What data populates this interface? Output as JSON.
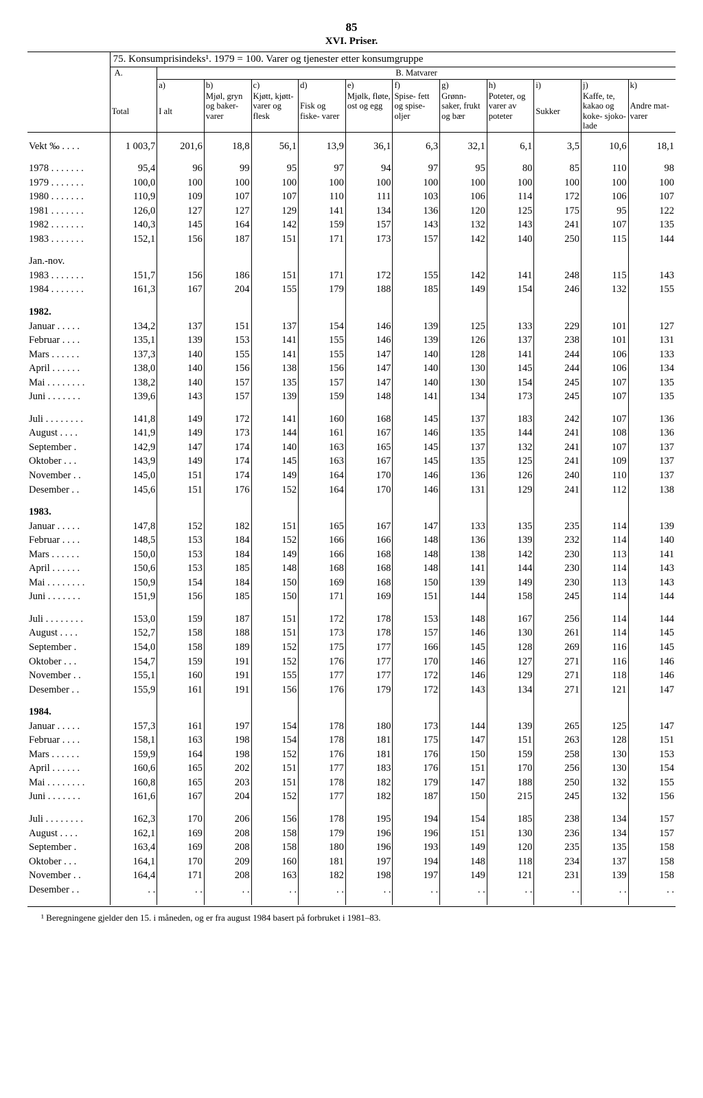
{
  "page_number": "85",
  "section_title": "XVI. Priser.",
  "table_title": "75. Konsumprisindeks¹. 1979 = 100. Varer og tjenester etter konsumgruppe",
  "col_group_A": "A.",
  "col_group_B": "B. Matvarer",
  "col_A_sub": "Total",
  "col_a_letter": "a)",
  "col_a_text": "I alt",
  "col_b_letter": "b)",
  "col_b_text": "Mjøl, gryn og baker- varer",
  "col_c_letter": "c)",
  "col_c_text": "Kjøtt, kjøtt- varer og flesk",
  "col_d_letter": "d)",
  "col_d_text": "Fisk og fiske- varer",
  "col_e_letter": "e)",
  "col_e_text": "Mjølk, fløte, ost og egg",
  "col_f_letter": "f)",
  "col_f_text": "Spise- fett og spise- oljer",
  "col_g_letter": "g)",
  "col_g_text": "Grønn- saker, frukt og bær",
  "col_h_letter": "h)",
  "col_h_text": "Poteter, og varer av poteter",
  "col_i_letter": "i)",
  "col_i_text": "Sukker",
  "col_j_letter": "j)",
  "col_j_text": "Kaffe, te, kakao og koke- sjoko- lade",
  "col_k_letter": "k)",
  "col_k_text": "Andre mat- varer",
  "footnote": "¹ Beregningene gjelder den 15. i måneden, og er fra august 1984 basert på forbruket i 1981–83.",
  "rows": [
    {
      "label": "Vekt ‰",
      "dots": " . . . .",
      "v": [
        "1 003,7",
        "201,6",
        "18,8",
        "56,1",
        "13,9",
        "36,1",
        "6,3",
        "32,1",
        "6,1",
        "3,5",
        "10,6",
        "18,1"
      ]
    },
    {
      "label": "1978",
      "dots": " . . . . . . .",
      "v": [
        "95,4",
        "96",
        "99",
        "95",
        "97",
        "94",
        "97",
        "95",
        "80",
        "85",
        "110",
        "98"
      ]
    },
    {
      "label": "1979",
      "dots": " . . . . . . .",
      "v": [
        "100,0",
        "100",
        "100",
        "100",
        "100",
        "100",
        "100",
        "100",
        "100",
        "100",
        "100",
        "100"
      ]
    },
    {
      "label": "1980",
      "dots": " . . . . . . .",
      "v": [
        "110,9",
        "109",
        "107",
        "107",
        "110",
        "111",
        "103",
        "106",
        "114",
        "172",
        "106",
        "107"
      ]
    },
    {
      "label": "1981",
      "dots": " . . . . . . .",
      "v": [
        "126,0",
        "127",
        "127",
        "129",
        "141",
        "134",
        "136",
        "120",
        "125",
        "175",
        "95",
        "122"
      ]
    },
    {
      "label": "1982",
      "dots": " . . . . . . .",
      "v": [
        "140,3",
        "145",
        "164",
        "142",
        "159",
        "157",
        "143",
        "132",
        "143",
        "241",
        "107",
        "135"
      ]
    },
    {
      "label": "1983",
      "dots": " . . . . . . .",
      "v": [
        "152,1",
        "156",
        "187",
        "151",
        "171",
        "173",
        "157",
        "142",
        "140",
        "250",
        "115",
        "144"
      ]
    },
    {
      "label": "Jan.-nov.",
      "v": null,
      "heading": true
    },
    {
      "label": "1983",
      "dots": " . . . . . . .",
      "v": [
        "151,7",
        "156",
        "186",
        "151",
        "171",
        "172",
        "155",
        "142",
        "141",
        "248",
        "115",
        "143"
      ]
    },
    {
      "label": "1984",
      "dots": " . . . . . . .",
      "v": [
        "161,3",
        "167",
        "204",
        "155",
        "179",
        "188",
        "185",
        "149",
        "154",
        "246",
        "132",
        "155"
      ]
    },
    {
      "label": "1982.",
      "v": null,
      "heading": true,
      "bold": true
    },
    {
      "label": "Januar",
      "dots": " . . . . .",
      "v": [
        "134,2",
        "137",
        "151",
        "137",
        "154",
        "146",
        "139",
        "125",
        "133",
        "229",
        "101",
        "127"
      ]
    },
    {
      "label": "Februar",
      "dots": " . . . .",
      "v": [
        "135,1",
        "139",
        "153",
        "141",
        "155",
        "146",
        "139",
        "126",
        "137",
        "238",
        "101",
        "131"
      ]
    },
    {
      "label": "Mars",
      "dots": "  . . . . . .",
      "v": [
        "137,3",
        "140",
        "155",
        "141",
        "155",
        "147",
        "140",
        "128",
        "141",
        "244",
        "106",
        "133"
      ]
    },
    {
      "label": "April",
      "dots": "  . . . . . .",
      "v": [
        "138,0",
        "140",
        "156",
        "138",
        "156",
        "147",
        "140",
        "130",
        "145",
        "244",
        "106",
        "134"
      ]
    },
    {
      "label": "Mai",
      "dots": " . . . . . . . .",
      "v": [
        "138,2",
        "140",
        "157",
        "135",
        "157",
        "147",
        "140",
        "130",
        "154",
        "245",
        "107",
        "135"
      ]
    },
    {
      "label": "Juni",
      "dots": "  . . . . . . .",
      "v": [
        "139,6",
        "143",
        "157",
        "139",
        "159",
        "148",
        "141",
        "134",
        "173",
        "245",
        "107",
        "135"
      ]
    },
    {
      "label": "Juli",
      "dots": " . . . . . . . .",
      "v": [
        "141,8",
        "149",
        "172",
        "141",
        "160",
        "168",
        "145",
        "137",
        "183",
        "242",
        "107",
        "136"
      ]
    },
    {
      "label": "August",
      "dots": "  . . . .",
      "v": [
        "141,9",
        "149",
        "173",
        "144",
        "161",
        "167",
        "146",
        "135",
        "144",
        "241",
        "108",
        "136"
      ]
    },
    {
      "label": "September",
      "dots": " .",
      "v": [
        "142,9",
        "147",
        "174",
        "140",
        "163",
        "165",
        "145",
        "137",
        "132",
        "241",
        "107",
        "137"
      ]
    },
    {
      "label": "Oktober",
      "dots": "  . . .",
      "v": [
        "143,9",
        "149",
        "174",
        "145",
        "163",
        "167",
        "145",
        "135",
        "125",
        "241",
        "109",
        "137"
      ]
    },
    {
      "label": "November",
      "dots": " . .",
      "v": [
        "145,0",
        "151",
        "174",
        "149",
        "164",
        "170",
        "146",
        "136",
        "126",
        "240",
        "110",
        "137"
      ]
    },
    {
      "label": "Desember",
      "dots": " . .",
      "v": [
        "145,6",
        "151",
        "176",
        "152",
        "164",
        "170",
        "146",
        "131",
        "129",
        "241",
        "112",
        "138"
      ]
    },
    {
      "label": "1983.",
      "v": null,
      "heading": true,
      "bold": true
    },
    {
      "label": "Januar",
      "dots": " . . . . .",
      "v": [
        "147,8",
        "152",
        "182",
        "151",
        "165",
        "167",
        "147",
        "133",
        "135",
        "235",
        "114",
        "139"
      ]
    },
    {
      "label": "Februar",
      "dots": " . . . .",
      "v": [
        "148,5",
        "153",
        "184",
        "152",
        "166",
        "166",
        "148",
        "136",
        "139",
        "232",
        "114",
        "140"
      ]
    },
    {
      "label": "Mars",
      "dots": "  . . . . . .",
      "v": [
        "150,0",
        "153",
        "184",
        "149",
        "166",
        "168",
        "148",
        "138",
        "142",
        "230",
        "113",
        "141"
      ]
    },
    {
      "label": "April",
      "dots": "  . . . . . .",
      "v": [
        "150,6",
        "153",
        "185",
        "148",
        "168",
        "168",
        "148",
        "141",
        "144",
        "230",
        "114",
        "143"
      ]
    },
    {
      "label": "Mai",
      "dots": " . . . . . . . .",
      "v": [
        "150,9",
        "154",
        "184",
        "150",
        "169",
        "168",
        "150",
        "139",
        "149",
        "230",
        "113",
        "143"
      ]
    },
    {
      "label": "Juni",
      "dots": "  . . . . . . .",
      "v": [
        "151,9",
        "156",
        "185",
        "150",
        "171",
        "169",
        "151",
        "144",
        "158",
        "245",
        "114",
        "144"
      ]
    },
    {
      "label": "Juli",
      "dots": " . . . . . . . .",
      "v": [
        "153,0",
        "159",
        "187",
        "151",
        "172",
        "178",
        "153",
        "148",
        "167",
        "256",
        "114",
        "144"
      ]
    },
    {
      "label": "August",
      "dots": "  . . . .",
      "v": [
        "152,7",
        "158",
        "188",
        "151",
        "173",
        "178",
        "157",
        "146",
        "130",
        "261",
        "114",
        "145"
      ]
    },
    {
      "label": "September",
      "dots": " .",
      "v": [
        "154,0",
        "158",
        "189",
        "152",
        "175",
        "177",
        "166",
        "145",
        "128",
        "269",
        "116",
        "145"
      ]
    },
    {
      "label": "Oktober",
      "dots": "  . . .",
      "v": [
        "154,7",
        "159",
        "191",
        "152",
        "176",
        "177",
        "170",
        "146",
        "127",
        "271",
        "116",
        "146"
      ]
    },
    {
      "label": "November",
      "dots": " . .",
      "v": [
        "155,1",
        "160",
        "191",
        "155",
        "177",
        "177",
        "172",
        "146",
        "129",
        "271",
        "118",
        "146"
      ]
    },
    {
      "label": "Desember",
      "dots": " . .",
      "v": [
        "155,9",
        "161",
        "191",
        "156",
        "176",
        "179",
        "172",
        "143",
        "134",
        "271",
        "121",
        "147"
      ]
    },
    {
      "label": "1984.",
      "v": null,
      "heading": true,
      "bold": true
    },
    {
      "label": "Januar",
      "dots": " . . . . .",
      "v": [
        "157,3",
        "161",
        "197",
        "154",
        "178",
        "180",
        "173",
        "144",
        "139",
        "265",
        "125",
        "147"
      ]
    },
    {
      "label": "Februar",
      "dots": " . . . .",
      "v": [
        "158,1",
        "163",
        "198",
        "154",
        "178",
        "181",
        "175",
        "147",
        "151",
        "263",
        "128",
        "151"
      ]
    },
    {
      "label": "Mars",
      "dots": "  . . . . . .",
      "v": [
        "159,9",
        "164",
        "198",
        "152",
        "176",
        "181",
        "176",
        "150",
        "159",
        "258",
        "130",
        "153"
      ]
    },
    {
      "label": "April",
      "dots": "  . . . . . .",
      "v": [
        "160,6",
        "165",
        "202",
        "151",
        "177",
        "183",
        "176",
        "151",
        "170",
        "256",
        "130",
        "154"
      ]
    },
    {
      "label": "Mai",
      "dots": " . . . . . . . .",
      "v": [
        "160,8",
        "165",
        "203",
        "151",
        "178",
        "182",
        "179",
        "147",
        "188",
        "250",
        "132",
        "155"
      ]
    },
    {
      "label": "Juni",
      "dots": "  . . . . . . .",
      "v": [
        "161,6",
        "167",
        "204",
        "152",
        "177",
        "182",
        "187",
        "150",
        "215",
        "245",
        "132",
        "156"
      ]
    },
    {
      "label": "Juli",
      "dots": " . . . . . . . .",
      "v": [
        "162,3",
        "170",
        "206",
        "156",
        "178",
        "195",
        "194",
        "154",
        "185",
        "238",
        "134",
        "157"
      ]
    },
    {
      "label": "August",
      "dots": "  . . . .",
      "v": [
        "162,1",
        "169",
        "208",
        "158",
        "179",
        "196",
        "196",
        "151",
        "130",
        "236",
        "134",
        "157"
      ]
    },
    {
      "label": "September",
      "dots": " .",
      "v": [
        "163,4",
        "169",
        "208",
        "158",
        "180",
        "196",
        "193",
        "149",
        "120",
        "235",
        "135",
        "158"
      ]
    },
    {
      "label": "Oktober",
      "dots": "  . . .",
      "v": [
        "164,1",
        "170",
        "209",
        "160",
        "181",
        "197",
        "194",
        "148",
        "118",
        "234",
        "137",
        "158"
      ]
    },
    {
      "label": "November",
      "dots": " . .",
      "v": [
        "164,4",
        "171",
        "208",
        "163",
        "182",
        "198",
        "197",
        "149",
        "121",
        "231",
        "139",
        "158"
      ]
    },
    {
      "label": "Desember",
      "dots": " . .",
      "v": [
        ". .",
        ". .",
        ". .",
        ". .",
        ". .",
        ". .",
        ". .",
        ". .",
        ". .",
        ". .",
        ". .",
        ". ."
      ]
    }
  ],
  "group_breaks_after": [
    0,
    6,
    9,
    16,
    22,
    29,
    35,
    42,
    48
  ]
}
